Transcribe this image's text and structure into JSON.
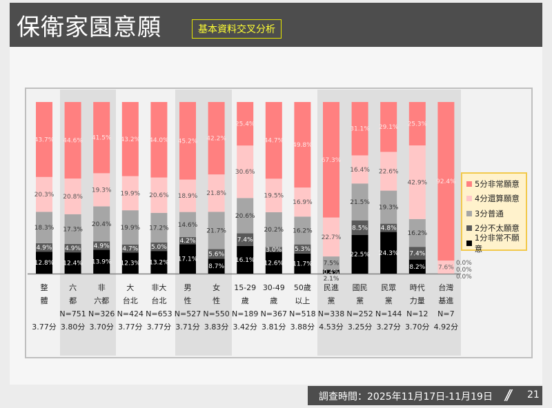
{
  "header": {
    "title": "保衛家園意願",
    "subtitle": "基本資料交叉分析"
  },
  "footer": {
    "date": "調查時間：2025年11月17日-11月19日",
    "page": "21"
  },
  "chart_data": {
    "type": "bar",
    "stacked": true,
    "legend_placement": "right",
    "series": [
      {
        "name": "1分非常不願意",
        "color": "#000000",
        "values": [
          12.8,
          12.4,
          13.9,
          12.3,
          13.2,
          17.1,
          8.7,
          16.1,
          12.6,
          11.7,
          2.1,
          22.5,
          24.3,
          8.2,
          0.0
        ]
      },
      {
        "name": "2分不太願意",
        "color": "#595959",
        "values": [
          4.9,
          4.9,
          4.9,
          4.7,
          5.0,
          4.2,
          5.6,
          7.4,
          3.0,
          5.3,
          0.4,
          8.5,
          4.8,
          7.4,
          0.0
        ]
      },
      {
        "name": "3分普通",
        "color": "#a6a6a6",
        "values": [
          18.3,
          17.3,
          20.4,
          19.9,
          17.2,
          14.6,
          21.7,
          20.6,
          20.2,
          16.2,
          7.5,
          21.5,
          19.3,
          16.2,
          0.0
        ]
      },
      {
        "name": "4分還算願意",
        "color": "#ffc7c7",
        "values": [
          20.3,
          20.8,
          19.3,
          19.9,
          20.6,
          18.9,
          21.8,
          30.6,
          19.5,
          16.9,
          22.7,
          16.4,
          22.6,
          42.9,
          7.6
        ]
      },
      {
        "name": "5分非常願意",
        "color": "#ff8080",
        "values": [
          43.7,
          44.6,
          41.5,
          43.2,
          44.0,
          45.2,
          42.2,
          25.4,
          44.7,
          49.8,
          67.3,
          31.1,
          29.1,
          25.3,
          92.4
        ]
      }
    ],
    "categories": [
      {
        "line1": "整",
        "line2": "體",
        "n": "",
        "score": "3.77分"
      },
      {
        "line1": "六",
        "line2": "都",
        "n": "N=751",
        "score": "3.80分"
      },
      {
        "line1": "非",
        "line2": "六都",
        "n": "N=326",
        "score": "3.70分"
      },
      {
        "line1": "大",
        "line2": "台北",
        "n": "N=424",
        "score": "3.77分"
      },
      {
        "line1": "非大",
        "line2": "台北",
        "n": "N=653",
        "score": "3.77分"
      },
      {
        "line1": "男",
        "line2": "性",
        "n": "N=527",
        "score": "3.71分"
      },
      {
        "line1": "女",
        "line2": "性",
        "n": "N=550",
        "score": "3.83分"
      },
      {
        "line1": "15-29",
        "line2": "歲",
        "n": "N=189",
        "score": "3.42分"
      },
      {
        "line1": "30-49",
        "line2": "歲",
        "n": "N=367",
        "score": "3.81分"
      },
      {
        "line1": "50歲",
        "line2": "以上",
        "n": "N=518",
        "score": "3.88分"
      },
      {
        "line1": "民進",
        "line2": "黨",
        "n": "N=338",
        "score": "4.53分"
      },
      {
        "line1": "國民",
        "line2": "黨",
        "n": "N=252",
        "score": "3.25分"
      },
      {
        "line1": "民眾",
        "line2": "黨",
        "n": "N=144",
        "score": "3.27分"
      },
      {
        "line1": "時代",
        "line2": "力量",
        "n": "N=12",
        "score": "3.70分"
      },
      {
        "line1": "台灣",
        "line2": "基進",
        "n": "N=7",
        "score": "4.92分"
      }
    ],
    "label_colors": [
      "#ffffff",
      "#ffffff",
      "#333333",
      "#555555",
      "#ffe6e6"
    ]
  }
}
